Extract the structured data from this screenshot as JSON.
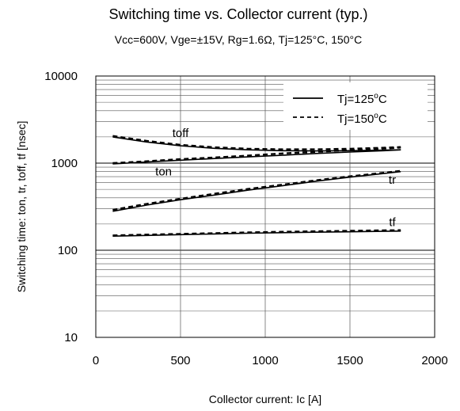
{
  "chart_data": {
    "type": "line",
    "title": "Switching time  vs.  Collector current  (typ.)",
    "subtitle": "Vcc=600V, Vge=±15V, Rg=1.6Ω, Tj=125°C, 150°C",
    "xlabel": "Collector current: Ic [A]",
    "ylabel": "Switching time: ton, tr, toff, tf [nsec]",
    "xlim": [
      0,
      2000
    ],
    "ylim": [
      10,
      10000
    ],
    "yscale": "log",
    "grid": true,
    "legend_position": "top-right",
    "x_ticks": [
      "0",
      "500",
      "1000",
      "1500",
      "2000"
    ],
    "x_tick_values": [
      0,
      500,
      1000,
      1500,
      2000
    ],
    "y_ticks": [
      "10",
      "100",
      "1000",
      "10000"
    ],
    "y_tick_values": [
      10,
      100,
      1000,
      10000
    ],
    "legend": [
      {
        "label_main": "Tj=125",
        "label_sup": "o",
        "label_end": "C",
        "style": "solid"
      },
      {
        "label_main": "Tj=150",
        "label_sup": "o",
        "label_end": "C",
        "style": "dashed"
      }
    ],
    "annotations": [
      {
        "text": "toff",
        "x": 500,
        "y": 2000
      },
      {
        "text": "ton",
        "x": 400,
        "y": 720
      },
      {
        "text": "tr",
        "x": 1750,
        "y": 580
      },
      {
        "text": "tf",
        "x": 1750,
        "y": 190
      }
    ],
    "x": [
      100,
      300,
      500,
      700,
      900,
      1100,
      1300,
      1500,
      1700,
      1800
    ],
    "series": [
      {
        "curve": "toff",
        "tj": "125",
        "style": "solid",
        "values": [
          2000,
          1750,
          1580,
          1480,
          1420,
          1390,
          1380,
          1390,
          1410,
          1420
        ]
      },
      {
        "curve": "toff",
        "tj": "150",
        "style": "dashed",
        "values": [
          2050,
          1800,
          1620,
          1520,
          1460,
          1440,
          1440,
          1460,
          1500,
          1530
        ]
      },
      {
        "curve": "ton",
        "tj": "125",
        "style": "solid",
        "values": [
          980,
          1030,
          1080,
          1130,
          1180,
          1230,
          1290,
          1340,
          1390,
          1420
        ]
      },
      {
        "curve": "ton",
        "tj": "150",
        "style": "dashed",
        "values": [
          1000,
          1050,
          1110,
          1160,
          1220,
          1290,
          1350,
          1410,
          1470,
          1510
        ]
      },
      {
        "curve": "tr",
        "tj": "125",
        "style": "solid",
        "values": [
          280,
          330,
          380,
          430,
          490,
          550,
          620,
          690,
          760,
          800
        ]
      },
      {
        "curve": "tr",
        "tj": "150",
        "style": "dashed",
        "values": [
          290,
          340,
          390,
          445,
          505,
          565,
          635,
          705,
          775,
          815
        ]
      },
      {
        "curve": "tf",
        "tj": "125",
        "style": "solid",
        "values": [
          145,
          148,
          151,
          154,
          157,
          159,
          161,
          163,
          165,
          166
        ]
      },
      {
        "curve": "tf",
        "tj": "150",
        "style": "dashed",
        "values": [
          148,
          151,
          154,
          157,
          160,
          163,
          165,
          167,
          169,
          170
        ]
      }
    ]
  }
}
